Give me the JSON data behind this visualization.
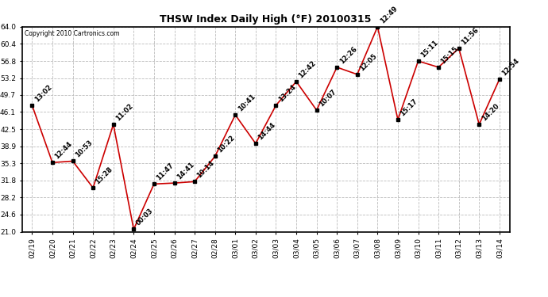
{
  "title": "THSW Index Daily High (°F) 20100315",
  "copyright": "Copyright 2010 Cartronics.com",
  "dates": [
    "02/19",
    "02/20",
    "02/21",
    "02/22",
    "02/23",
    "02/24",
    "02/25",
    "02/26",
    "02/27",
    "02/28",
    "03/01",
    "03/02",
    "03/03",
    "03/04",
    "03/05",
    "03/06",
    "03/07",
    "03/08",
    "03/09",
    "03/10",
    "03/11",
    "03/12",
    "03/13",
    "03/14"
  ],
  "values": [
    47.5,
    35.5,
    35.8,
    30.2,
    43.5,
    21.5,
    31.0,
    31.2,
    31.5,
    36.8,
    45.5,
    39.5,
    47.5,
    52.5,
    46.5,
    55.5,
    54.0,
    64.0,
    44.5,
    56.8,
    55.5,
    59.5,
    43.5,
    53.0
  ],
  "labels": [
    "13:02",
    "12:44",
    "10:53",
    "15:28",
    "11:02",
    "00:03",
    "11:47",
    "14:41",
    "10:14",
    "10:22",
    "10:41",
    "14:44",
    "13:24",
    "12:42",
    "10:07",
    "12:26",
    "12:05",
    "12:49",
    "15:17",
    "15:11",
    "15:15",
    "11:56",
    "14:20",
    "12:54"
  ],
  "line_color": "#cc0000",
  "marker_color": "#000000",
  "bg_color": "#ffffff",
  "grid_color": "#bbbbbb",
  "ylim": [
    21.0,
    64.0
  ],
  "yticks": [
    21.0,
    24.6,
    28.2,
    31.8,
    35.3,
    38.9,
    42.5,
    46.1,
    49.7,
    53.2,
    56.8,
    60.4,
    64.0
  ],
  "title_fontsize": 9,
  "label_fontsize": 6,
  "tick_fontsize": 6.5,
  "copyright_fontsize": 5.5
}
